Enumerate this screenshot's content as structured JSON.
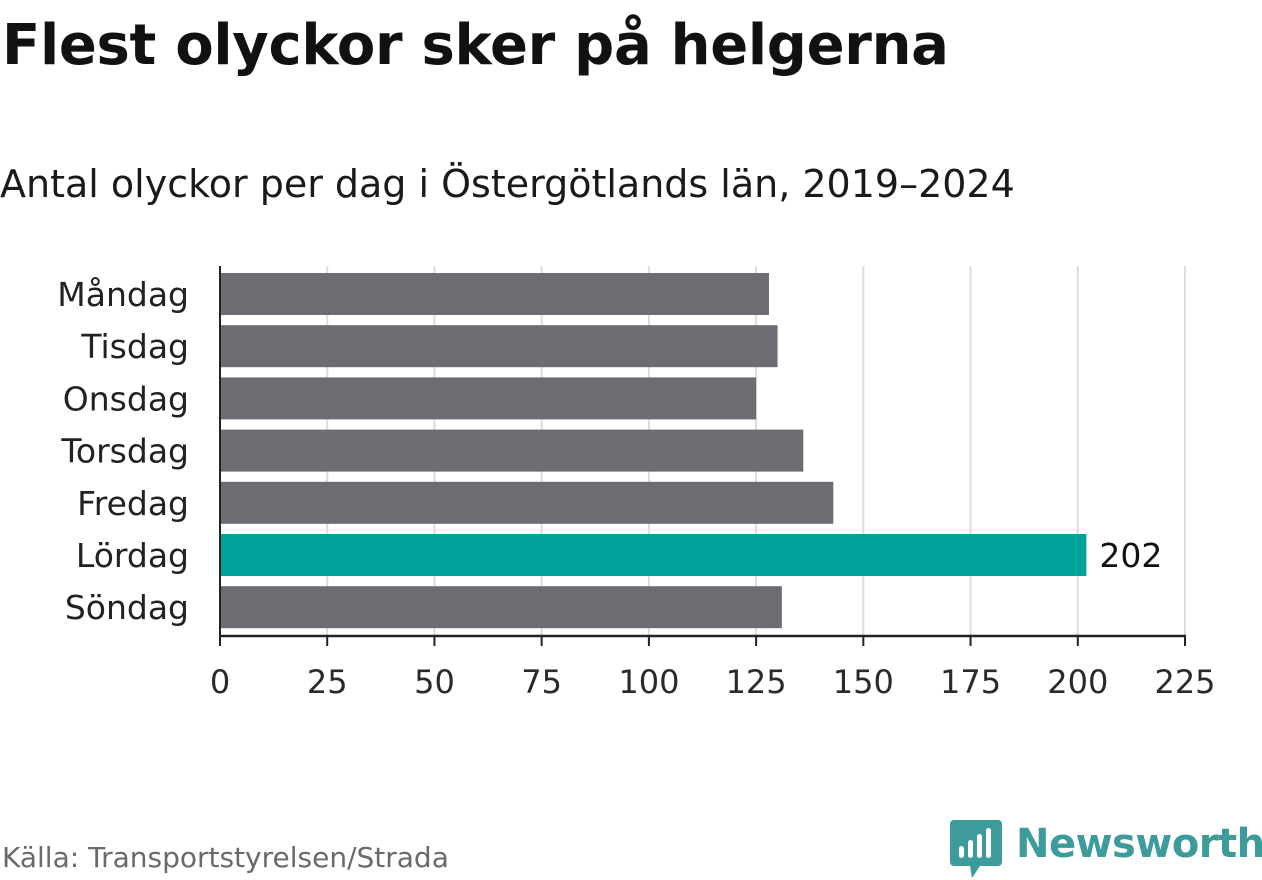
{
  "header": {
    "title": "Flest olyckor sker på helgerna",
    "subtitle": "Antal olyckor per dag i Östergötlands län, 2019–2024"
  },
  "footer": {
    "source": "Källa: Transportstyrelsen/Strada",
    "brand": "Newsworthy",
    "brand_icon": "bar-chart-bubble-icon"
  },
  "colors": {
    "bar_default": "#6d6c72",
    "bar_highlight": "#00a39a",
    "gridline": "#dcdcdc",
    "axis": "#222222",
    "brand": "#3d9b9b"
  },
  "chart_data": {
    "type": "bar",
    "orientation": "horizontal",
    "categories": [
      "Måndag",
      "Tisdag",
      "Onsdag",
      "Torsdag",
      "Fredag",
      "Lördag",
      "Söndag"
    ],
    "values": [
      128,
      130,
      125,
      136,
      143,
      202,
      131
    ],
    "highlight_index": 5,
    "data_labels": [
      {
        "category": "Lördag",
        "text": "202"
      }
    ],
    "xlim": [
      0,
      225
    ],
    "xticks": [
      "0",
      "25",
      "50",
      "75",
      "100",
      "125",
      "150",
      "175",
      "200",
      "225"
    ],
    "grid": "vertical",
    "legend": "none"
  }
}
